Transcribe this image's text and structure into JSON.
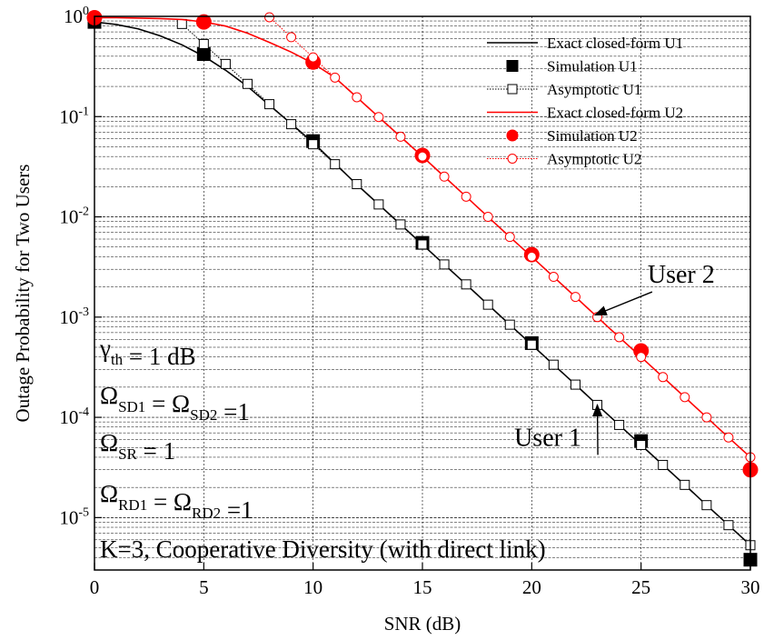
{
  "chart_data": {
    "type": "line",
    "xlabel": "SNR (dB)",
    "ylabel": "Outage Probability for Two Users",
    "xlim": [
      0,
      30
    ],
    "ylim": [
      3e-06,
      1
    ],
    "yscale": "log",
    "xticks": [
      "0",
      "5",
      "10",
      "15",
      "20",
      "25",
      "30"
    ],
    "yticks": [
      {
        "base": "10",
        "exp": "0"
      },
      {
        "base": "10",
        "exp": "-1"
      },
      {
        "base": "10",
        "exp": "-2"
      },
      {
        "base": "10",
        "exp": "-3"
      },
      {
        "base": "10",
        "exp": "-4"
      },
      {
        "base": "10",
        "exp": "-5"
      }
    ],
    "ytick_values": [
      1,
      0.1,
      0.01,
      0.001,
      0.0001,
      1e-05
    ],
    "grid": true,
    "legend_position": "top-right",
    "series": [
      {
        "name": "Exact closed-form U1",
        "color": "#000000",
        "style": "solid-line",
        "x": [
          0,
          1,
          2,
          3,
          4,
          5,
          6,
          7,
          8,
          9,
          10,
          11,
          12,
          13,
          14,
          15,
          16,
          17,
          18,
          19,
          20,
          21,
          22,
          23,
          24,
          25,
          26,
          27,
          28,
          29,
          30
        ],
        "y": [
          0.88,
          0.83,
          0.75,
          0.64,
          0.52,
          0.4,
          0.29,
          0.2,
          0.13,
          0.085,
          0.055,
          0.034,
          0.021,
          0.0133,
          0.0084,
          0.0053,
          0.00335,
          0.00212,
          0.00133,
          0.00084,
          0.00053,
          0.000335,
          0.000212,
          0.000133,
          8.4e-05,
          5.3e-05,
          3.35e-05,
          2.12e-05,
          1.33e-05,
          8.4e-06,
          5.3e-06
        ]
      },
      {
        "name": "Simulation U1",
        "color": "#000000",
        "style": "filled-square",
        "x": [
          0,
          5,
          10,
          15,
          20,
          25,
          30
        ],
        "y": [
          0.88,
          0.42,
          0.057,
          0.0055,
          0.00055,
          5.8e-05,
          3.8e-06
        ]
      },
      {
        "name": "Asymptotic U1",
        "color": "#000000",
        "style": "dotted-open-square",
        "x": [
          4,
          5,
          6,
          7,
          8,
          9,
          10,
          11,
          12,
          13,
          14,
          15,
          16,
          17,
          18,
          19,
          20,
          21,
          22,
          23,
          24,
          25,
          26,
          27,
          28,
          29,
          30
        ],
        "y": [
          0.84,
          0.53,
          0.335,
          0.212,
          0.133,
          0.084,
          0.053,
          0.0335,
          0.0212,
          0.0133,
          0.0084,
          0.0053,
          0.00335,
          0.00212,
          0.00133,
          0.00084,
          0.00053,
          0.000335,
          0.000212,
          0.000133,
          8.4e-05,
          5.3e-05,
          3.35e-05,
          2.12e-05,
          1.33e-05,
          8.4e-06,
          5.3e-06
        ]
      },
      {
        "name": "Exact closed-form U2",
        "color": "#ff0000",
        "style": "solid-line",
        "x": [
          0,
          1,
          2,
          3,
          4,
          5,
          6,
          7,
          8,
          9,
          10,
          11,
          12,
          13,
          14,
          15,
          16,
          17,
          18,
          19,
          20,
          21,
          22,
          23,
          24,
          25,
          26,
          27,
          28,
          29,
          30
        ],
        "y": [
          0.97,
          0.97,
          0.96,
          0.95,
          0.93,
          0.88,
          0.8,
          0.68,
          0.55,
          0.44,
          0.34,
          0.245,
          0.156,
          0.099,
          0.063,
          0.04,
          0.0252,
          0.0159,
          0.01,
          0.0063,
          0.004,
          0.00252,
          0.00159,
          0.001,
          0.00063,
          0.0004,
          0.000252,
          0.000159,
          0.0001,
          6.3e-05,
          4e-05
        ]
      },
      {
        "name": "Simulation U2",
        "color": "#ff0000",
        "style": "filled-circle",
        "x": [
          0,
          5,
          10,
          15,
          20,
          25,
          30
        ],
        "y": [
          0.97,
          0.88,
          0.35,
          0.041,
          0.0042,
          0.00046,
          3e-05
        ]
      },
      {
        "name": "Asymptotic U2",
        "color": "#ff0000",
        "style": "dotted-open-circle",
        "x": [
          8,
          9,
          10,
          11,
          12,
          13,
          14,
          15,
          16,
          17,
          18,
          19,
          20,
          21,
          22,
          23,
          24,
          25,
          26,
          27,
          28,
          29,
          30
        ],
        "y": [
          0.98,
          0.62,
          0.39,
          0.245,
          0.156,
          0.099,
          0.063,
          0.04,
          0.0252,
          0.0159,
          0.01,
          0.0063,
          0.004,
          0.00252,
          0.00159,
          0.001,
          0.00063,
          0.0004,
          0.000252,
          0.000159,
          0.0001,
          6.3e-05,
          4e-05
        ]
      }
    ],
    "annotations": [
      {
        "text": "User 2",
        "x": 25.3,
        "y": 0.0022,
        "arrow_to": [
          22.9,
          0.00105
        ]
      },
      {
        "text": "User 1",
        "x": 19.2,
        "y": 5.2e-05,
        "arrow_to": [
          23.0,
          0.000133
        ]
      }
    ],
    "parameters": [
      {
        "parts": [
          {
            "t": "γ"
          },
          {
            "t": "th",
            "sub": true
          },
          {
            "t": " = 1 dB"
          }
        ]
      },
      {
        "parts": [
          {
            "t": "Ω"
          },
          {
            "t": "SD1",
            "sub": true
          },
          {
            "t": " = Ω"
          },
          {
            "t": "SD2",
            "sub": true
          },
          {
            "t": " =1"
          }
        ]
      },
      {
        "parts": [
          {
            "t": "Ω"
          },
          {
            "t": "SR",
            "sub": true
          },
          {
            "t": " = 1"
          }
        ]
      },
      {
        "parts": [
          {
            "t": "Ω"
          },
          {
            "t": "RD1",
            "sub": true
          },
          {
            "t": " = Ω"
          },
          {
            "t": "RD2",
            "sub": true
          },
          {
            "t": " =1"
          }
        ]
      },
      {
        "parts": [
          {
            "t": "K=3, Cooperative Diversity (with direct link)"
          }
        ]
      }
    ]
  }
}
